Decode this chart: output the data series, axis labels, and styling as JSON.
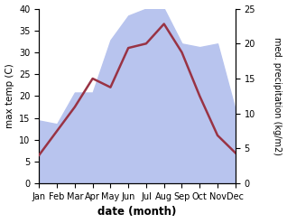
{
  "months": [
    "Jan",
    "Feb",
    "Mar",
    "Apr",
    "May",
    "Jun",
    "Jul",
    "Aug",
    "Sep",
    "Oct",
    "Nov",
    "Dec"
  ],
  "temperature": [
    6.5,
    12.0,
    17.5,
    24.0,
    22.0,
    31.0,
    32.0,
    36.5,
    30.0,
    20.0,
    11.0,
    7.0
  ],
  "precipitation": [
    9.0,
    8.5,
    13.0,
    13.0,
    20.5,
    24.0,
    25.0,
    25.0,
    20.0,
    19.5,
    20.0,
    10.5
  ],
  "temp_color": "#993344",
  "precip_color": "#b8c4ee",
  "ylim_left": [
    0,
    40
  ],
  "ylim_right": [
    0,
    25
  ],
  "xlabel": "date (month)",
  "ylabel_left": "max temp (C)",
  "ylabel_right": "med. precipitation (kg/m2)",
  "bg_color": "#ffffff",
  "label_fontsize": 7.5,
  "tick_fontsize": 7.0,
  "xlabel_fontsize": 8.5
}
